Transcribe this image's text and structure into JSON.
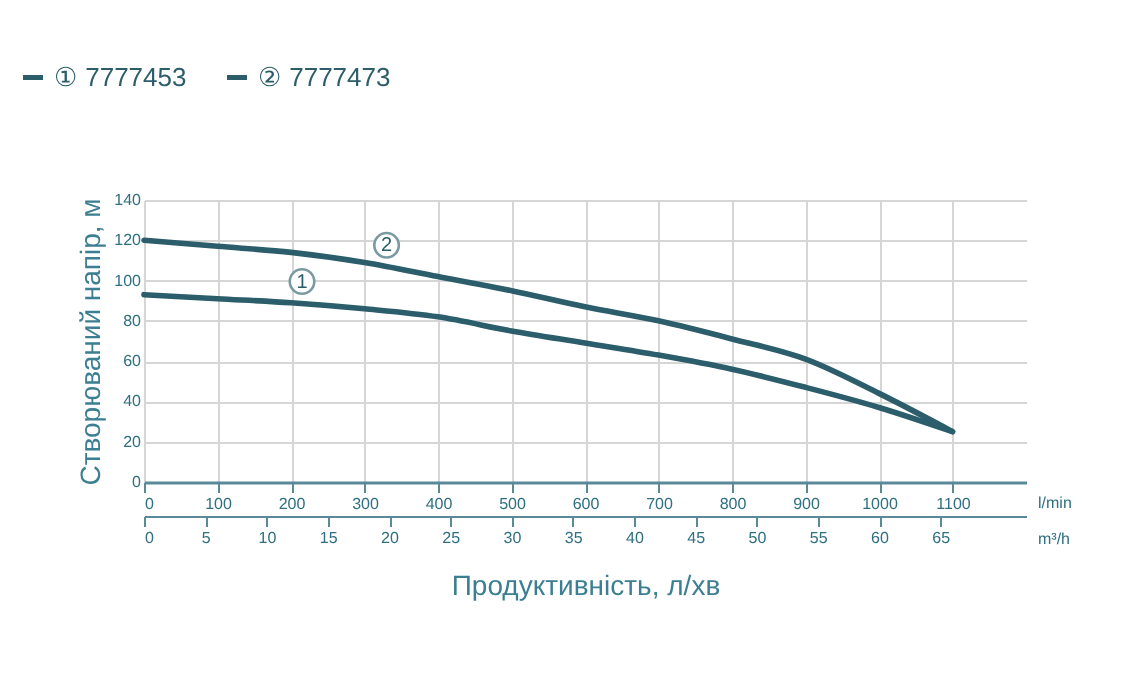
{
  "chart_data": {
    "type": "line",
    "xlabel": "Продуктивність, л/хв",
    "ylabel": "Створюваний напір, м",
    "x2label": "m³/h",
    "x": [
      0,
      100,
      200,
      300,
      400,
      500,
      600,
      700,
      800,
      900,
      1000,
      1100
    ],
    "series": [
      {
        "name": "① 7777453",
        "color": "#2b5d6b",
        "values": [
          93,
          91,
          89,
          86,
          82,
          75,
          69,
          63,
          56,
          47,
          37,
          25
        ]
      },
      {
        "name": "② 7777473",
        "color": "#2b5d6b",
        "values": [
          120,
          117,
          114,
          109,
          102,
          95,
          87,
          80,
          71,
          61,
          44,
          25
        ]
      }
    ],
    "xlim": [
      0,
      1200
    ],
    "xticks": [
      0,
      100,
      200,
      300,
      400,
      500,
      600,
      700,
      800,
      900,
      1000,
      1100
    ],
    "x2lim": [
      0,
      72
    ],
    "x2ticks": [
      0,
      5,
      10,
      15,
      20,
      25,
      30,
      35,
      40,
      45,
      50,
      55,
      60,
      65
    ],
    "ylim": [
      0,
      140
    ],
    "yticks": [
      0,
      20,
      40,
      60,
      80,
      100,
      120,
      140
    ],
    "annotations": [
      "l/min",
      {
        "text": "1",
        "x": 215,
        "y": 88.6
      },
      {
        "text": "2",
        "x": 330,
        "y": 106.6
      }
    ],
    "grid": true,
    "legend": "top left",
    "marker": "none",
    "line_style": "solid"
  }
}
